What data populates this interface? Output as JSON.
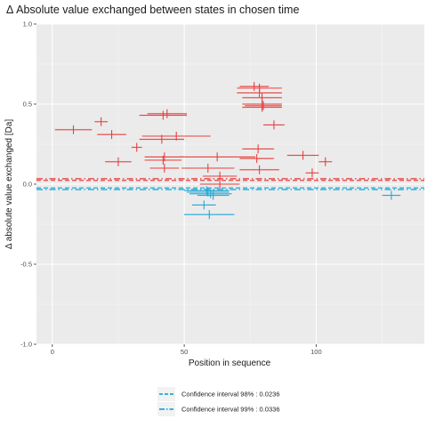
{
  "chart_data": {
    "type": "scatter",
    "title": "Δ Absolute value exchanged between states in chosen time",
    "xlabel": "Position in sequence",
    "ylabel": "Δ absolute value exchanged [Da]",
    "xlim": [
      -6,
      141
    ],
    "ylim": [
      -1.0,
      1.0
    ],
    "x_ticks": [
      0,
      50,
      100
    ],
    "x_tick_labels": [
      "0",
      "50",
      "100"
    ],
    "y_ticks": [
      -1.0,
      -0.5,
      0.0,
      0.5,
      1.0
    ],
    "y_tick_labels": [
      "-1.0",
      "-0.5",
      "0.0",
      "0.5",
      "1.0"
    ],
    "grid": true,
    "colors": {
      "positive": "#e8403f",
      "negative": "#22a8d6",
      "panel": "#ebebeb",
      "grid": "#ffffff"
    },
    "series": [
      {
        "color": "#e8403f",
        "segments": [
          {
            "x": [
              1,
              15
            ],
            "y": 0.34
          },
          {
            "x": [
              16,
              21
            ],
            "y": 0.39
          },
          {
            "x": [
              17,
              28
            ],
            "y": 0.31
          },
          {
            "x": [
              20,
              30
            ],
            "y": 0.14
          },
          {
            "x": [
              30,
              34
            ],
            "y": 0.23
          },
          {
            "x": [
              33,
              51
            ],
            "y": 0.43
          },
          {
            "x": [
              36,
              51
            ],
            "y": 0.44
          },
          {
            "x": [
              33,
              50
            ],
            "y": 0.28
          },
          {
            "x": [
              34,
              60
            ],
            "y": 0.3
          },
          {
            "x": [
              35,
              50
            ],
            "y": 0.17
          },
          {
            "x": [
              35,
              49
            ],
            "y": 0.15
          },
          {
            "x": [
              37,
              48
            ],
            "y": 0.1
          },
          {
            "x": [
              48,
              77
            ],
            "y": 0.17
          },
          {
            "x": [
              49,
              69
            ],
            "y": 0.1
          },
          {
            "x": [
              57,
              70
            ],
            "y": 0.05
          },
          {
            "x": [
              56,
              71
            ],
            "y": 0.0
          },
          {
            "x": [
              71,
              82
            ],
            "y": 0.61
          },
          {
            "x": [
              70,
              87
            ],
            "y": 0.6
          },
          {
            "x": [
              70,
              87
            ],
            "y": 0.57
          },
          {
            "x": [
              72,
              87
            ],
            "y": 0.54
          },
          {
            "x": [
              72,
              87
            ],
            "y": 0.5
          },
          {
            "x": [
              73,
              87
            ],
            "y": 0.49
          },
          {
            "x": [
              72,
              87
            ],
            "y": 0.48
          },
          {
            "x": [
              80,
              88
            ],
            "y": 0.37
          },
          {
            "x": [
              72,
              84
            ],
            "y": 0.22
          },
          {
            "x": [
              71,
              84
            ],
            "y": 0.16
          },
          {
            "x": [
              71,
              86
            ],
            "y": 0.09
          },
          {
            "x": [
              89,
              101
            ],
            "y": 0.18
          },
          {
            "x": [
              96,
              101
            ],
            "y": 0.07
          },
          {
            "x": [
              101,
              106
            ],
            "y": 0.14
          }
        ]
      },
      {
        "color": "#22a8d6",
        "segments": [
          {
            "x": [
              50,
              67
            ],
            "y": -0.04
          },
          {
            "x": [
              51,
              67
            ],
            "y": -0.05
          },
          {
            "x": [
              52,
              68
            ],
            "y": -0.06
          },
          {
            "x": [
              55,
              67
            ],
            "y": -0.07
          },
          {
            "x": [
              53,
              62
            ],
            "y": -0.13
          },
          {
            "x": [
              50,
              69
            ],
            "y": -0.19
          },
          {
            "x": [
              125,
              132
            ],
            "y": -0.07
          }
        ]
      }
    ],
    "reference_lines": [
      {
        "y": 0.0236,
        "color": "#e8403f",
        "style": "dashed"
      },
      {
        "y": -0.0236,
        "color": "#22a8d6",
        "style": "dashed"
      },
      {
        "y": 0.0336,
        "color": "#e8403f",
        "style": "dotdash"
      },
      {
        "y": -0.0336,
        "color": "#22a8d6",
        "style": "dotdash"
      }
    ],
    "legend": {
      "placement": "bottom",
      "entries": [
        {
          "label": "Confidence interval 98% : 0.0236",
          "style": "dashed",
          "color": "#22a8d6"
        },
        {
          "label": "Confidence interval 99% : 0.0336",
          "style": "dotdash",
          "color": "#22a8d6"
        }
      ]
    }
  }
}
